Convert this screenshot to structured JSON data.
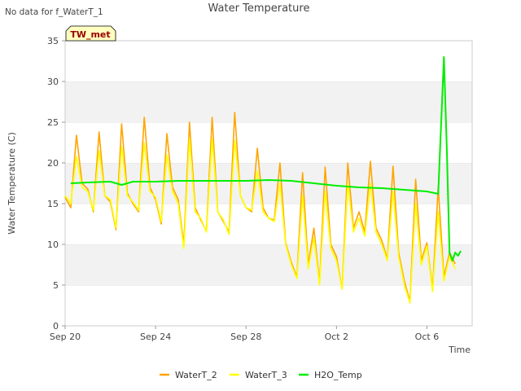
{
  "page": {
    "no_data_note": "No data for f_WaterT_1",
    "badge": "TW_met"
  },
  "colors": {
    "WaterT_2": "#FFA500",
    "WaterT_3": "#FFFF00",
    "H2O_Temp": "#00EE00",
    "band": "#f2f2f2",
    "badge_bg": "#ffffc0",
    "badge_text": "#990000"
  },
  "chart_data": {
    "type": "line",
    "title": "Water Temperature",
    "xlabel": "Time",
    "ylabel": "Water Temperature (C)",
    "xlim": [
      "2023-09-20",
      "2023-10-08"
    ],
    "ylim": [
      0,
      35
    ],
    "x_ticks": [
      {
        "date": "2023-09-20",
        "label": "Sep 20"
      },
      {
        "date": "2023-09-24",
        "label": "Sep 24"
      },
      {
        "date": "2023-09-28",
        "label": "Sep 28"
      },
      {
        "date": "2023-10-02",
        "label": "Oct 2"
      },
      {
        "date": "2023-10-06",
        "label": "Oct 6"
      }
    ],
    "y_ticks": [
      0,
      5,
      10,
      15,
      20,
      25,
      30,
      35
    ],
    "grid": "horizontal bands",
    "legend_position": "bottom",
    "series": [
      {
        "name": "WaterT_2",
        "x": [
          "2023-09-20 00:00",
          "2023-09-20 06:00",
          "2023-09-20 12:00",
          "2023-09-20 18:00",
          "2023-09-21 00:00",
          "2023-09-21 06:00",
          "2023-09-21 12:00",
          "2023-09-21 18:00",
          "2023-09-22 00:00",
          "2023-09-22 06:00",
          "2023-09-22 12:00",
          "2023-09-22 18:00",
          "2023-09-23 00:00",
          "2023-09-23 06:00",
          "2023-09-23 12:00",
          "2023-09-23 18:00",
          "2023-09-24 00:00",
          "2023-09-24 06:00",
          "2023-09-24 12:00",
          "2023-09-24 18:00",
          "2023-09-25 00:00",
          "2023-09-25 06:00",
          "2023-09-25 12:00",
          "2023-09-25 18:00",
          "2023-09-26 00:00",
          "2023-09-26 06:00",
          "2023-09-26 12:00",
          "2023-09-26 18:00",
          "2023-09-27 00:00",
          "2023-09-27 06:00",
          "2023-09-27 12:00",
          "2023-09-27 18:00",
          "2023-09-28 00:00",
          "2023-09-28 06:00",
          "2023-09-28 12:00",
          "2023-09-28 18:00",
          "2023-09-29 00:00",
          "2023-09-29 06:00",
          "2023-09-29 12:00",
          "2023-09-29 18:00",
          "2023-09-30 00:00",
          "2023-09-30 06:00",
          "2023-09-30 12:00",
          "2023-09-30 18:00",
          "2023-10-01 00:00",
          "2023-10-01 06:00",
          "2023-10-01 12:00",
          "2023-10-01 18:00",
          "2023-10-02 00:00",
          "2023-10-02 06:00",
          "2023-10-02 12:00",
          "2023-10-02 18:00",
          "2023-10-03 00:00",
          "2023-10-03 06:00",
          "2023-10-03 12:00",
          "2023-10-03 18:00",
          "2023-10-04 00:00",
          "2023-10-04 06:00",
          "2023-10-04 12:00",
          "2023-10-04 18:00",
          "2023-10-05 00:00",
          "2023-10-05 06:00",
          "2023-10-05 12:00",
          "2023-10-05 18:00",
          "2023-10-06 00:00",
          "2023-10-06 06:00",
          "2023-10-06 12:00",
          "2023-10-06 18:00",
          "2023-10-07 00:00",
          "2023-10-07 06:00"
        ],
        "values": [
          15.8,
          14.5,
          23.4,
          17.5,
          16.8,
          14.0,
          23.8,
          16.0,
          15.2,
          11.8,
          24.8,
          16.3,
          15.0,
          14.0,
          25.6,
          17.0,
          15.5,
          12.5,
          23.6,
          17.0,
          15.5,
          10.0,
          25.0,
          14.5,
          13.0,
          11.6,
          25.6,
          14.0,
          12.8,
          11.5,
          26.2,
          16.0,
          14.5,
          14.0,
          21.8,
          14.5,
          13.2,
          13.0,
          20.0,
          10.2,
          7.8,
          6.0,
          18.8,
          7.5,
          12.0,
          5.2,
          19.5,
          10.0,
          8.5,
          4.5,
          20.0,
          12.0,
          14.0,
          11.5,
          20.2,
          12.0,
          10.5,
          8.2,
          19.6,
          9.0,
          5.5,
          3.0,
          18.0,
          8.0,
          10.2,
          4.5,
          17.0,
          6.0,
          9.0,
          7.6
        ]
      },
      {
        "name": "WaterT_3",
        "x": [
          "2023-09-20 00:00",
          "2023-09-20 06:00",
          "2023-09-20 12:00",
          "2023-09-20 18:00",
          "2023-09-21 00:00",
          "2023-09-21 06:00",
          "2023-09-21 12:00",
          "2023-09-21 18:00",
          "2023-09-22 00:00",
          "2023-09-22 06:00",
          "2023-09-22 12:00",
          "2023-09-22 18:00",
          "2023-09-23 00:00",
          "2023-09-23 06:00",
          "2023-09-23 12:00",
          "2023-09-23 18:00",
          "2023-09-24 00:00",
          "2023-09-24 06:00",
          "2023-09-24 12:00",
          "2023-09-24 18:00",
          "2023-09-25 00:00",
          "2023-09-25 06:00",
          "2023-09-25 12:00",
          "2023-09-25 18:00",
          "2023-09-26 00:00",
          "2023-09-26 06:00",
          "2023-09-26 12:00",
          "2023-09-26 18:00",
          "2023-09-27 00:00",
          "2023-09-27 06:00",
          "2023-09-27 12:00",
          "2023-09-27 18:00",
          "2023-09-28 00:00",
          "2023-09-28 06:00",
          "2023-09-28 12:00",
          "2023-09-28 18:00",
          "2023-09-29 00:00",
          "2023-09-29 06:00",
          "2023-09-29 12:00",
          "2023-09-29 18:00",
          "2023-09-30 00:00",
          "2023-09-30 06:00",
          "2023-09-30 12:00",
          "2023-09-30 18:00",
          "2023-10-01 00:00",
          "2023-10-01 06:00",
          "2023-10-01 12:00",
          "2023-10-01 18:00",
          "2023-10-02 00:00",
          "2023-10-02 06:00",
          "2023-10-02 12:00",
          "2023-10-02 18:00",
          "2023-10-03 00:00",
          "2023-10-03 06:00",
          "2023-10-03 12:00",
          "2023-10-03 18:00",
          "2023-10-04 00:00",
          "2023-10-04 06:00",
          "2023-10-04 12:00",
          "2023-10-04 18:00",
          "2023-10-05 00:00",
          "2023-10-05 06:00",
          "2023-10-05 12:00",
          "2023-10-05 18:00",
          "2023-10-06 00:00",
          "2023-10-06 06:00",
          "2023-10-06 12:00",
          "2023-10-06 18:00",
          "2023-10-07 00:00",
          "2023-10-07 06:00"
        ],
        "values": [
          16.0,
          15.0,
          20.8,
          17.0,
          16.5,
          14.2,
          21.5,
          16.0,
          15.5,
          12.0,
          22.0,
          16.0,
          15.2,
          14.2,
          22.5,
          16.5,
          15.8,
          12.8,
          21.0,
          16.5,
          15.0,
          9.5,
          23.0,
          14.0,
          13.2,
          11.5,
          23.0,
          14.0,
          13.0,
          11.2,
          22.8,
          16.0,
          14.5,
          14.2,
          19.0,
          14.0,
          13.2,
          12.8,
          17.5,
          10.0,
          7.5,
          5.8,
          16.0,
          7.0,
          10.8,
          5.0,
          16.5,
          9.5,
          8.0,
          4.5,
          17.5,
          11.5,
          13.2,
          11.0,
          17.5,
          11.5,
          10.0,
          8.0,
          16.5,
          8.5,
          5.0,
          2.8,
          15.0,
          7.5,
          9.8,
          4.2,
          14.0,
          5.5,
          8.5,
          7.0
        ]
      },
      {
        "name": "H2O_Temp",
        "x": [
          "2023-09-20 06:00",
          "2023-09-21 00:00",
          "2023-09-22 00:00",
          "2023-09-22 12:00",
          "2023-09-23 00:00",
          "2023-09-24 00:00",
          "2023-09-25 00:00",
          "2023-09-26 00:00",
          "2023-09-27 00:00",
          "2023-09-28 00:00",
          "2023-09-29 00:00",
          "2023-09-30 00:00",
          "2023-10-01 00:00",
          "2023-10-02 00:00",
          "2023-10-03 00:00",
          "2023-10-04 00:00",
          "2023-10-05 00:00",
          "2023-10-06 00:00",
          "2023-10-06 12:00",
          "2023-10-06 18:00",
          "2023-10-06 21:00",
          "2023-10-07 00:00",
          "2023-10-07 03:00",
          "2023-10-07 06:00",
          "2023-10-07 09:00",
          "2023-10-07 12:00"
        ],
        "values": [
          17.5,
          17.6,
          17.7,
          17.3,
          17.7,
          17.7,
          17.8,
          17.8,
          17.8,
          17.8,
          17.9,
          17.8,
          17.5,
          17.2,
          17.0,
          16.9,
          16.7,
          16.5,
          16.2,
          33.0,
          22.0,
          9.0,
          8.0,
          9.0,
          8.6,
          9.2
        ]
      }
    ]
  }
}
